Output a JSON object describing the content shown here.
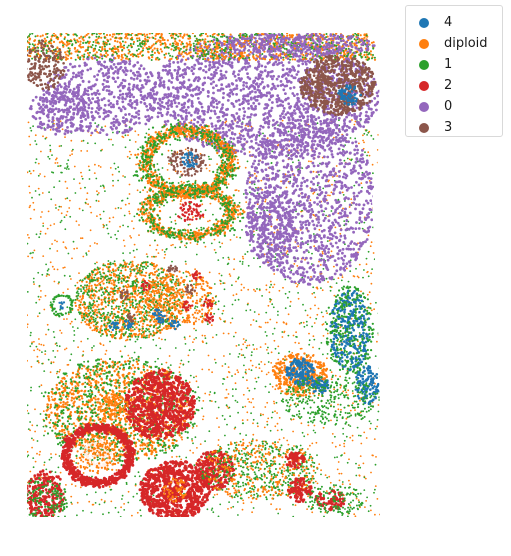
{
  "chart_data": {
    "type": "scatter",
    "title": "",
    "xlabel": "",
    "ylabel": "",
    "axes_visible": false,
    "grid": false,
    "legend_position": "outside-top-right",
    "series": [
      {
        "name": "4",
        "color": "#1f77b4"
      },
      {
        "name": "diploid",
        "color": "#ff7f0e"
      },
      {
        "name": "1",
        "color": "#2ca02c"
      },
      {
        "name": "2",
        "color": "#d62728"
      },
      {
        "name": "0",
        "color": "#9467bd"
      },
      {
        "name": "3",
        "color": "#8c564b"
      }
    ]
  }
}
